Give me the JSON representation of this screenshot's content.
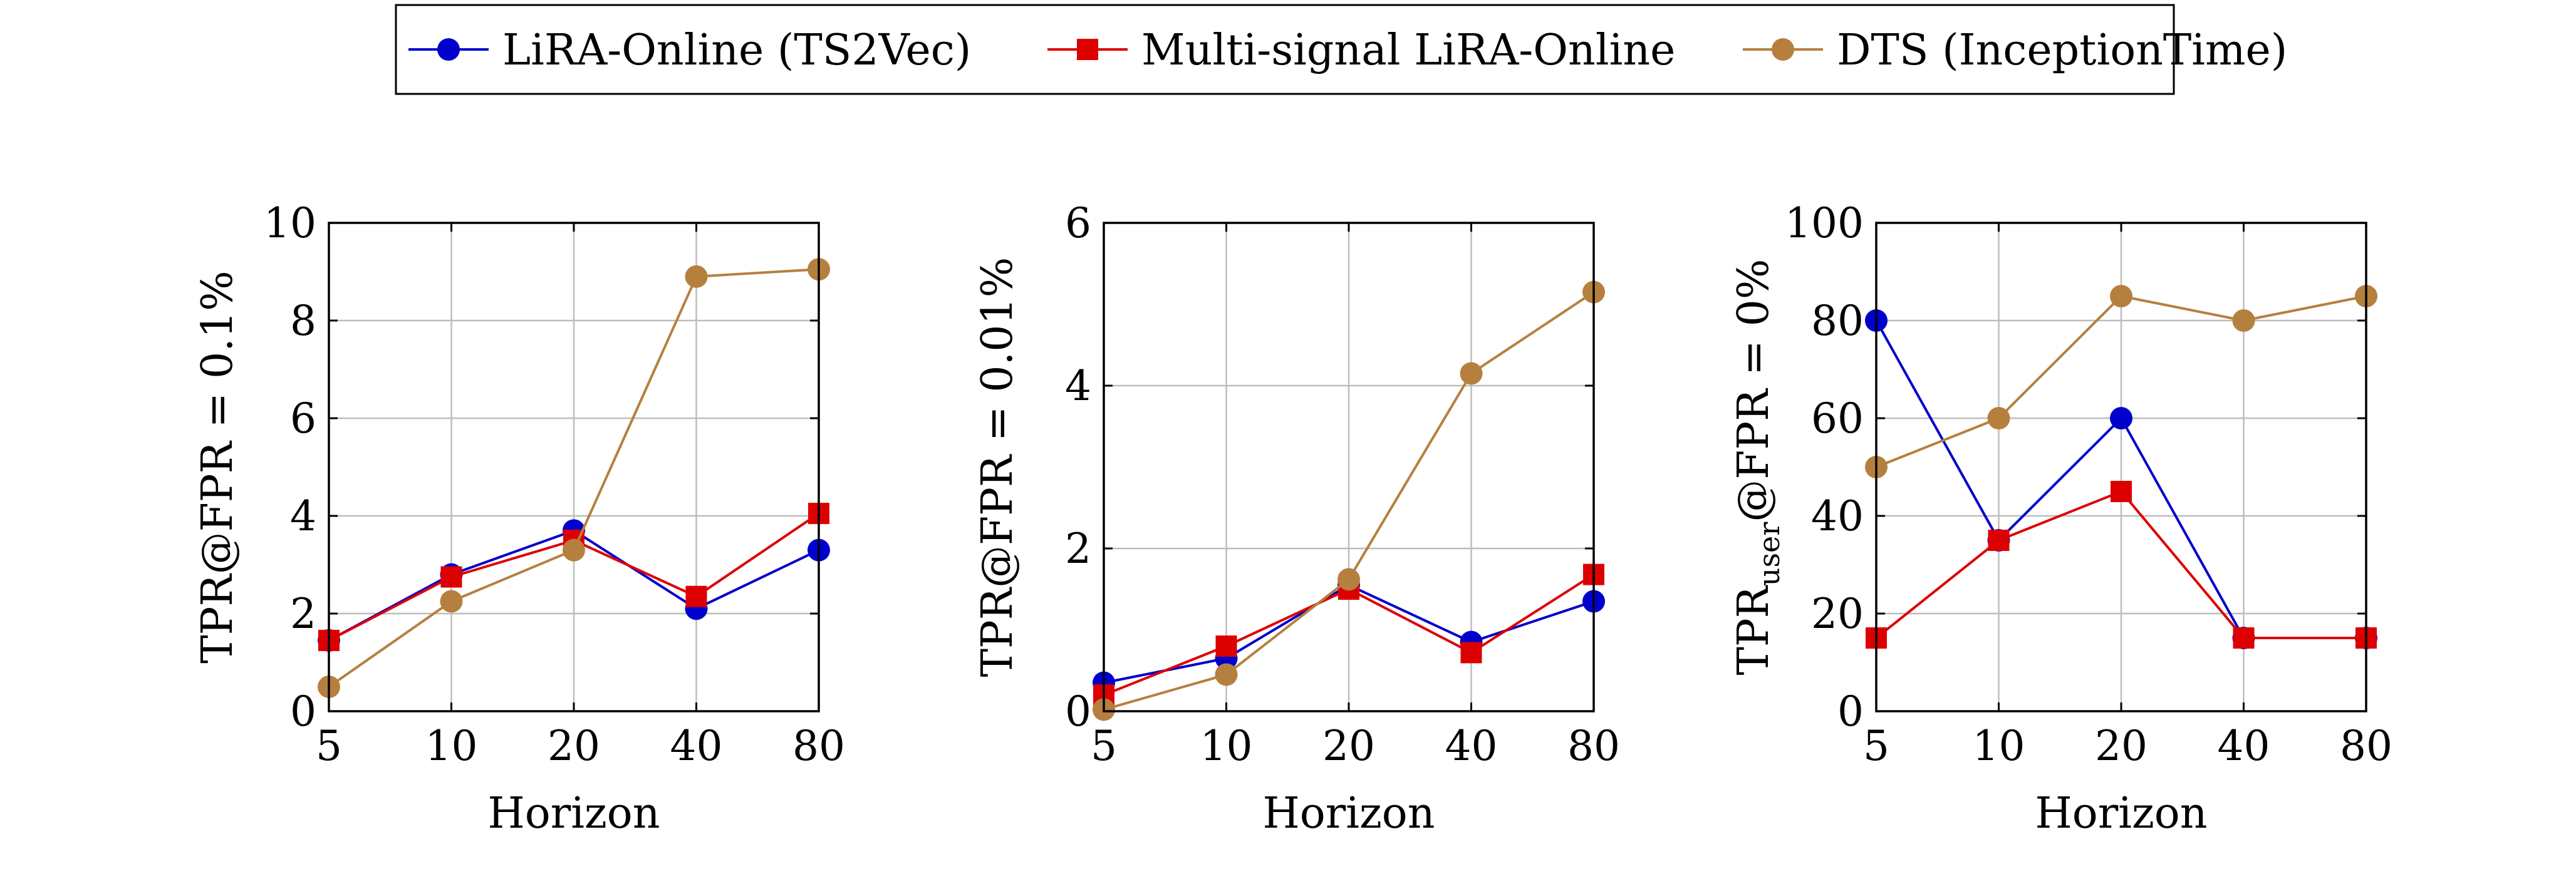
{
  "legend": {
    "items": [
      {
        "label": "LiRA-Online (TS2Vec)",
        "color": "#0000cc",
        "marker": "circle"
      },
      {
        "label": "Multi-signal LiRA-Online",
        "color": "#dd0000",
        "marker": "square"
      },
      {
        "label": "DTS (InceptionTime)",
        "color": "#b5803e",
        "marker": "circle"
      }
    ]
  },
  "chart_data": [
    {
      "type": "line",
      "categories": [
        "5",
        "10",
        "20",
        "40",
        "80"
      ],
      "xlabel": "Horizon",
      "ylabel": "TPR@FPR = 0.1%",
      "ylim": [
        0,
        10
      ],
      "yticks": [
        "0",
        "2",
        "4",
        "6",
        "8",
        "10"
      ],
      "grid": true,
      "series": [
        {
          "name": "LiRA-Online (TS2Vec)",
          "color": "#0000cc",
          "marker": "circle",
          "values": [
            1.45,
            2.8,
            3.7,
            2.1,
            3.3
          ]
        },
        {
          "name": "Multi-signal LiRA-Online",
          "color": "#dd0000",
          "marker": "square",
          "values": [
            1.45,
            2.75,
            3.5,
            2.35,
            4.05
          ]
        },
        {
          "name": "DTS (InceptionTime)",
          "color": "#b5803e",
          "marker": "circle",
          "values": [
            0.5,
            2.25,
            3.3,
            8.9,
            9.05
          ]
        }
      ]
    },
    {
      "type": "line",
      "categories": [
        "5",
        "10",
        "20",
        "40",
        "80"
      ],
      "xlabel": "Horizon",
      "ylabel": "TPR@FPR = 0.01%",
      "ylim": [
        0,
        6
      ],
      "yticks": [
        "0",
        "2",
        "4",
        "6"
      ],
      "grid": true,
      "series": [
        {
          "name": "LiRA-Online (TS2Vec)",
          "color": "#0000cc",
          "marker": "circle",
          "values": [
            0.35,
            0.65,
            1.55,
            0.85,
            1.35
          ]
        },
        {
          "name": "Multi-signal LiRA-Online",
          "color": "#dd0000",
          "marker": "square",
          "values": [
            0.2,
            0.8,
            1.5,
            0.72,
            1.68
          ]
        },
        {
          "name": "DTS (InceptionTime)",
          "color": "#b5803e",
          "marker": "circle",
          "values": [
            0.02,
            0.45,
            1.62,
            4.15,
            5.15
          ]
        }
      ]
    },
    {
      "type": "line",
      "categories": [
        "5",
        "10",
        "20",
        "40",
        "80"
      ],
      "xlabel": "Horizon",
      "ylabel": "TPR",
      "ylabel_sub": "user",
      "ylabel_tail": "@FPR = 0%",
      "ylim": [
        0,
        100
      ],
      "yticks": [
        "0",
        "20",
        "40",
        "60",
        "80",
        "100"
      ],
      "grid": true,
      "series": [
        {
          "name": "LiRA-Online (TS2Vec)",
          "color": "#0000cc",
          "marker": "circle",
          "values": [
            80,
            35,
            60,
            15,
            15
          ]
        },
        {
          "name": "Multi-signal LiRA-Online",
          "color": "#dd0000",
          "marker": "square",
          "values": [
            15,
            35,
            45,
            15,
            15
          ]
        },
        {
          "name": "DTS (InceptionTime)",
          "color": "#b5803e",
          "marker": "circle",
          "values": [
            50,
            60,
            85,
            80,
            85
          ]
        }
      ]
    }
  ]
}
